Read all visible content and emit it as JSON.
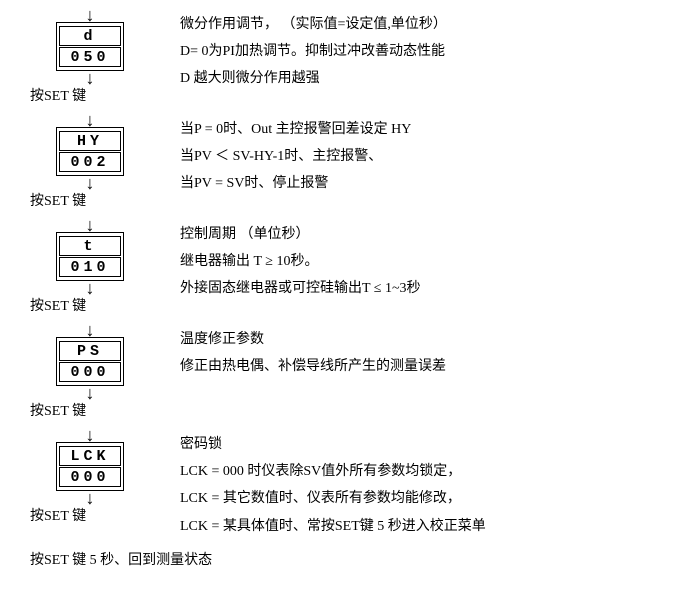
{
  "steps": [
    {
      "param": "d",
      "value": "050",
      "set_label": "按SET 键",
      "desc": [
        "微分作用调节，  （实际值=设定值,单位秒）",
        "D= 0为PI加热调节。抑制过冲改善动态性能",
        "D 越大则微分作用越强"
      ]
    },
    {
      "param": "HY",
      "value": "002",
      "set_label": "按SET 键",
      "desc": [
        "当P = 0时、Out 主控报警回差设定 HY",
        "当PV ＜ SV-HY-1时、主控报警、",
        "当PV = SV时、停止报警"
      ]
    },
    {
      "param": "t",
      "value": "010",
      "set_label": "按SET 键",
      "desc": [
        "控制周期  （单位秒）",
        "继电器输出  T  ≥   10秒。",
        "外接固态继电器或可控硅输出T ≤ 1~3秒"
      ]
    },
    {
      "param": "PS",
      "value": "000",
      "set_label": "按SET 键",
      "desc": [
        "温度修正参数",
        "修正由热电偶、补偿导线所产生的测量误差"
      ]
    },
    {
      "param": "LCK",
      "value": "000",
      "set_label": "按SET 键",
      "desc": [
        "密码锁",
        "LCK = 000 时仪表除SV值外所有参数均锁定，",
        "LCK = 其它数值时、仪表所有参数均能修改，",
        "LCK = 某具体值时、常按SET键 5 秒进入校正菜单"
      ]
    }
  ],
  "final": "按SET  键 5 秒、回到测量状态"
}
